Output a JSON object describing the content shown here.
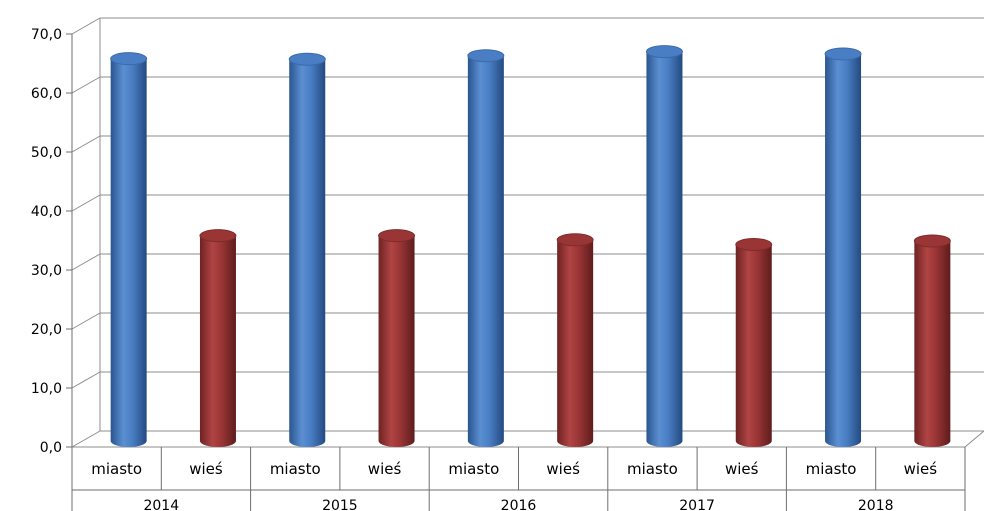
{
  "chart_data": {
    "type": "bar",
    "title": "",
    "xlabel": "",
    "ylabel": "",
    "ylim": [
      0,
      70
    ],
    "yticks": [
      "0,0",
      "10,0",
      "20,0",
      "30,0",
      "40,0",
      "50,0",
      "60,0",
      "70,0"
    ],
    "grid": true,
    "groups": [
      "2014",
      "2015",
      "2016",
      "2017",
      "2018"
    ],
    "categories": [
      "miasto",
      "wieś",
      "miasto",
      "wieś",
      "miasto",
      "wieś",
      "miasto",
      "wieś",
      "miasto",
      "wieś"
    ],
    "values": [
      64.8,
      34.8,
      64.7,
      34.8,
      65.3,
      34.1,
      66.0,
      33.3,
      65.6,
      33.9
    ],
    "colors": {
      "miasto": "#4a7ec4",
      "wieś": "#9a3535"
    }
  }
}
